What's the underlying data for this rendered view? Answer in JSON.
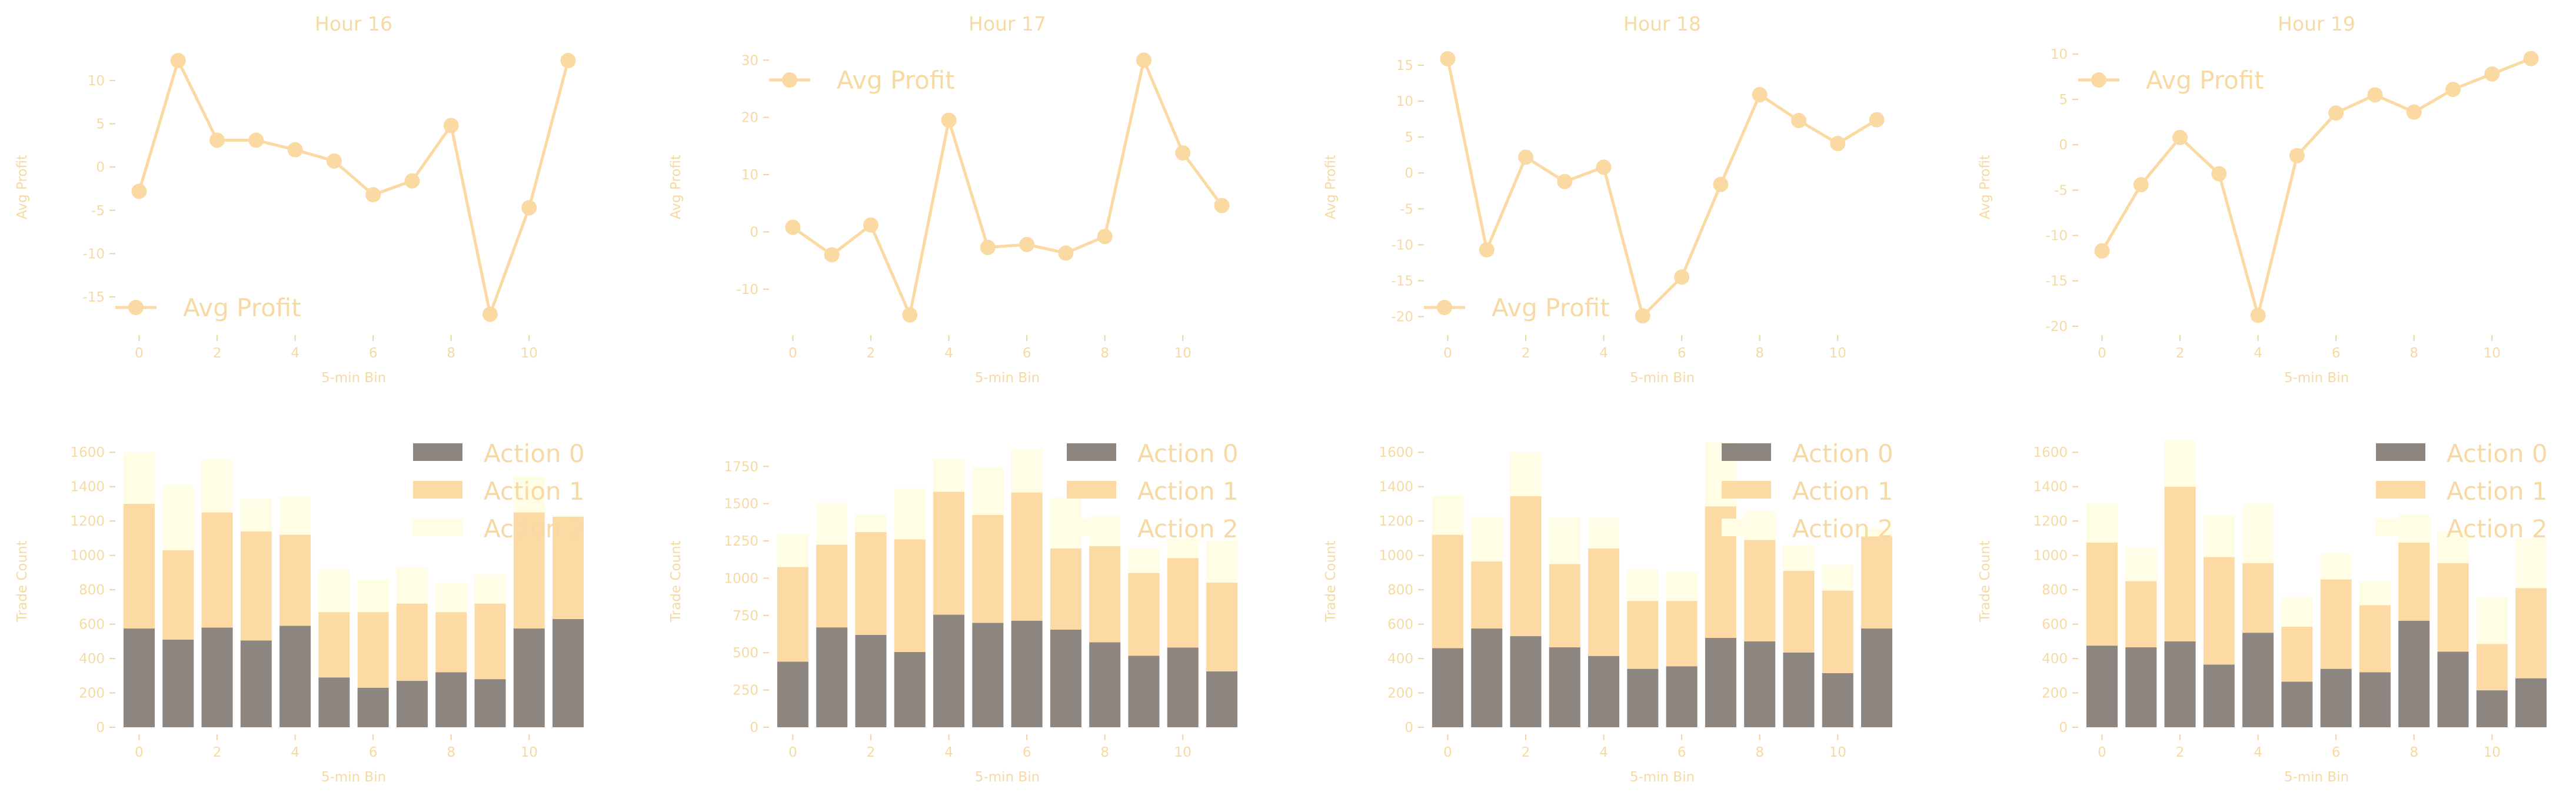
{
  "colors": {
    "line": "#fbd9a2",
    "text": "#f7d9a4",
    "tick": "#f3d3a0",
    "action0": "#8c8580",
    "action1": "#fddaa4",
    "action2": "#fffde6"
  },
  "chart_data": [
    {
      "type": "line",
      "title": "Hour 16",
      "xlabel": "5-min Bin",
      "ylabel": "Avg Profit",
      "legend_position": "lower-left",
      "x": [
        0,
        1,
        2,
        3,
        4,
        5,
        6,
        7,
        8,
        9,
        10,
        11
      ],
      "series": [
        {
          "name": "Avg Profit",
          "values": [
            -2.8,
            12.3,
            3.1,
            3.1,
            2.0,
            0.7,
            -3.2,
            -1.6,
            4.8,
            -17.0,
            -4.7,
            12.3
          ]
        }
      ],
      "xlim": [
        -0.55,
        11.55
      ],
      "ylim": [
        -18.6,
        14.0
      ],
      "xticks": [
        0,
        2,
        4,
        6,
        8,
        10
      ],
      "yticks": [
        -15,
        -10,
        -5,
        0,
        5,
        10
      ]
    },
    {
      "type": "line",
      "title": "Hour 17",
      "xlabel": "5-min Bin",
      "ylabel": "Avg Profit",
      "legend_position": "upper-left",
      "x": [
        0,
        1,
        2,
        3,
        4,
        5,
        6,
        7,
        8,
        9,
        10,
        11
      ],
      "series": [
        {
          "name": "Avg Profit",
          "values": [
            0.8,
            -4.0,
            1.2,
            -14.5,
            19.5,
            -2.7,
            -2.2,
            -3.7,
            -0.8,
            30.0,
            13.8,
            4.6
          ]
        }
      ],
      "xlim": [
        -0.55,
        11.55
      ],
      "ylim": [
        -16.8,
        32.5
      ],
      "xticks": [
        0,
        2,
        4,
        6,
        8,
        10
      ],
      "yticks": [
        -10,
        0,
        10,
        20,
        30
      ]
    },
    {
      "type": "line",
      "title": "Hour 18",
      "xlabel": "5-min Bin",
      "ylabel": "Avg Profit",
      "legend_position": "lower-left",
      "x": [
        0,
        1,
        2,
        3,
        4,
        5,
        6,
        7,
        8,
        9,
        10,
        11
      ],
      "series": [
        {
          "name": "Avg Profit",
          "values": [
            15.9,
            -10.7,
            2.2,
            -1.2,
            0.8,
            -19.9,
            -14.5,
            -1.6,
            10.9,
            7.3,
            4.1,
            7.4
          ]
        }
      ],
      "xlim": [
        -0.55,
        11.55
      ],
      "ylim": [
        -21.6,
        17.7
      ],
      "xticks": [
        0,
        2,
        4,
        6,
        8,
        10
      ],
      "yticks": [
        -20,
        -15,
        -10,
        -5,
        0,
        5,
        10,
        15
      ]
    },
    {
      "type": "line",
      "title": "Hour 19",
      "xlabel": "5-min Bin",
      "ylabel": "Avg Profit",
      "legend_position": "upper-left",
      "x": [
        0,
        1,
        2,
        3,
        4,
        5,
        6,
        7,
        8,
        9,
        10,
        11
      ],
      "series": [
        {
          "name": "Avg Profit",
          "values": [
            -11.7,
            -4.4,
            0.8,
            -3.2,
            -18.8,
            -1.2,
            3.5,
            5.5,
            3.6,
            6.1,
            7.8,
            9.5
          ]
        }
      ],
      "xlim": [
        -0.55,
        11.55
      ],
      "ylim": [
        -20.2,
        10.9
      ],
      "xticks": [
        0,
        2,
        4,
        6,
        8,
        10
      ],
      "yticks": [
        -20,
        -15,
        -10,
        -5,
        0,
        5,
        10
      ]
    },
    {
      "type": "bar",
      "stacked": true,
      "xlabel": "5-min Bin",
      "ylabel": "Trade Count",
      "legend_position": "upper-right",
      "categories": [
        0,
        1,
        2,
        3,
        4,
        5,
        6,
        7,
        8,
        9,
        10,
        11
      ],
      "series": [
        {
          "name": "Action 0",
          "values": [
            575,
            510,
            580,
            505,
            590,
            290,
            230,
            270,
            320,
            280,
            575,
            630
          ]
        },
        {
          "name": "Action 1",
          "values": [
            725,
            520,
            670,
            635,
            530,
            380,
            440,
            450,
            350,
            440,
            675,
            595
          ]
        },
        {
          "name": "Action 2",
          "values": [
            300,
            380,
            310,
            190,
            220,
            250,
            190,
            210,
            170,
            170,
            210,
            10
          ]
        }
      ],
      "xlim": [
        -0.55,
        11.55
      ],
      "ylim": [
        0,
        1700
      ],
      "xticks": [
        0,
        2,
        4,
        6,
        8,
        10
      ],
      "yticks": [
        0,
        200,
        400,
        600,
        800,
        1000,
        1200,
        1400,
        1600
      ]
    },
    {
      "type": "bar",
      "stacked": true,
      "xlabel": "5-min Bin",
      "ylabel": "Trade Count",
      "legend_position": "upper-right",
      "categories": [
        0,
        1,
        2,
        3,
        4,
        5,
        6,
        7,
        8,
        9,
        10,
        11
      ],
      "series": [
        {
          "name": "Action 0",
          "values": [
            440,
            670,
            620,
            505,
            755,
            700,
            715,
            655,
            570,
            480,
            535,
            375
          ]
        },
        {
          "name": "Action 1",
          "values": [
            635,
            555,
            690,
            755,
            825,
            725,
            860,
            545,
            645,
            555,
            600,
            595
          ]
        },
        {
          "name": "Action 2",
          "values": [
            225,
            280,
            120,
            340,
            220,
            320,
            290,
            340,
            200,
            160,
            130,
            280
          ]
        }
      ],
      "xlim": [
        -0.55,
        11.55
      ],
      "ylim": [
        0,
        1960
      ],
      "xticks": [
        0,
        2,
        4,
        6,
        8,
        10
      ],
      "yticks": [
        0,
        250,
        500,
        750,
        1000,
        1250,
        1500,
        1750
      ]
    },
    {
      "type": "bar",
      "stacked": true,
      "xlabel": "5-min Bin",
      "ylabel": "Trade Count",
      "legend_position": "upper-right",
      "categories": [
        0,
        1,
        2,
        3,
        4,
        5,
        6,
        7,
        8,
        9,
        10,
        11
      ],
      "series": [
        {
          "name": "Action 0",
          "values": [
            460,
            575,
            530,
            465,
            415,
            340,
            355,
            520,
            500,
            435,
            315,
            575
          ]
        },
        {
          "name": "Action 1",
          "values": [
            660,
            390,
            815,
            485,
            625,
            395,
            380,
            765,
            590,
            475,
            480,
            535
          ]
        },
        {
          "name": "Action 2",
          "values": [
            230,
            260,
            255,
            270,
            180,
            185,
            170,
            375,
            170,
            150,
            150,
            50
          ]
        }
      ],
      "xlim": [
        -0.55,
        11.55
      ],
      "ylim": [
        0,
        1700
      ],
      "xticks": [
        0,
        2,
        4,
        6,
        8,
        10
      ],
      "yticks": [
        0,
        200,
        400,
        600,
        800,
        1000,
        1200,
        1400,
        1600
      ]
    },
    {
      "type": "bar",
      "stacked": true,
      "xlabel": "5-min Bin",
      "ylabel": "Trade Count",
      "legend_position": "upper-right",
      "categories": [
        0,
        1,
        2,
        3,
        4,
        5,
        6,
        7,
        8,
        9,
        10,
        11
      ],
      "series": [
        {
          "name": "Action 0",
          "values": [
            475,
            465,
            500,
            365,
            550,
            265,
            340,
            320,
            620,
            440,
            215,
            285
          ]
        },
        {
          "name": "Action 1",
          "values": [
            600,
            385,
            900,
            625,
            405,
            320,
            520,
            390,
            455,
            515,
            270,
            525
          ]
        },
        {
          "name": "Action 2",
          "values": [
            225,
            195,
            270,
            245,
            345,
            175,
            150,
            140,
            165,
            185,
            270,
            290
          ]
        }
      ],
      "xlim": [
        -0.55,
        11.55
      ],
      "ylim": [
        0,
        1700
      ],
      "xticks": [
        0,
        2,
        4,
        6,
        8,
        10
      ],
      "yticks": [
        0,
        200,
        400,
        600,
        800,
        1000,
        1200,
        1400,
        1600
      ]
    }
  ]
}
